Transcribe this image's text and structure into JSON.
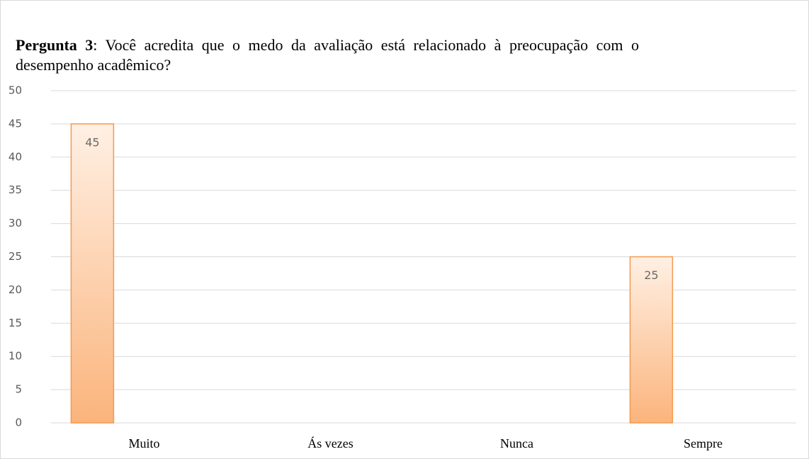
{
  "chart_data": {
    "type": "bar",
    "title": {
      "bold": "Pergunta 3",
      "text": ": Você acredita que o medo da avaliação está relacionado à preocupação com o desempenho acadêmico?"
    },
    "categories": [
      "Muito",
      "Ás vezes",
      "Nunca",
      "Sempre"
    ],
    "values": [
      45,
      null,
      null,
      25
    ],
    "color": "#fbb47c",
    "ylim": [
      0,
      50
    ],
    "yticks": [
      0,
      5,
      10,
      15,
      20,
      25,
      30,
      35,
      40,
      45,
      50
    ],
    "grid": true
  }
}
